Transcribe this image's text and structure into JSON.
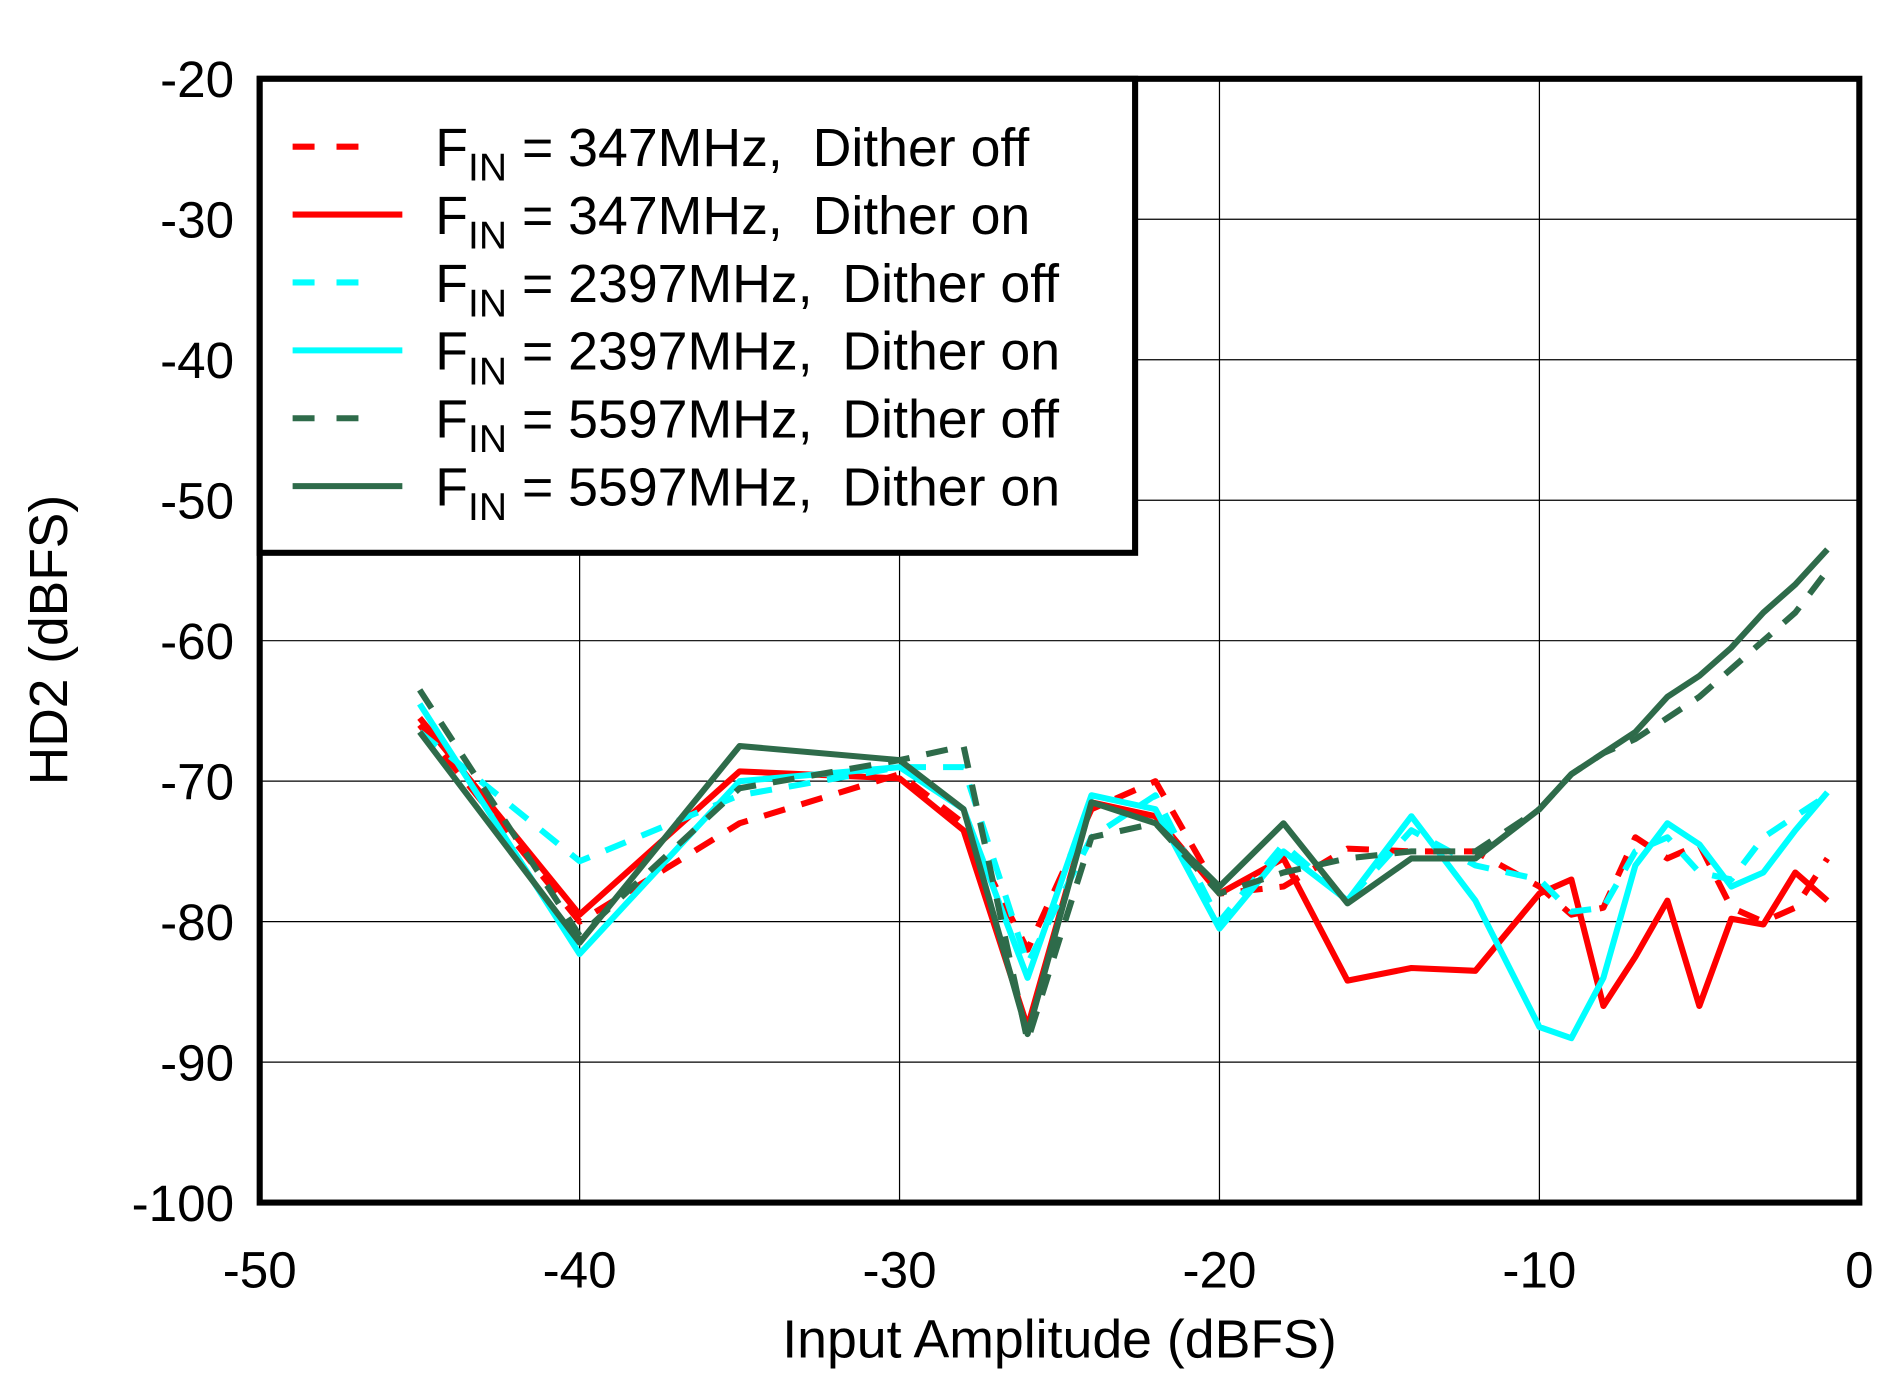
{
  "chart_data": {
    "type": "line",
    "title": "",
    "xlabel": "Input Amplitude  (dBFS)",
    "ylabel": "HD2  (dBFS)",
    "xlim": [
      -50,
      0
    ],
    "ylim": [
      -100,
      -20
    ],
    "xticks": [
      -50,
      -40,
      -30,
      -20,
      -10,
      0
    ],
    "yticks": [
      -20,
      -30,
      -40,
      -50,
      -60,
      -70,
      -80,
      -90,
      -100
    ],
    "grid": true,
    "legend_position": "top-left",
    "x": [
      -45,
      -40,
      -35,
      -30,
      -28,
      -26,
      -24,
      -22,
      -20,
      -18,
      -16,
      -14,
      -12,
      -10,
      -9,
      -8,
      -7,
      -6,
      -5,
      -4,
      -3,
      -2,
      -1
    ],
    "series": [
      {
        "name": {
          "prefix": "F",
          "sub": "IN",
          "rest": " = 347MHz,  Dither off"
        },
        "color": "#ff0000",
        "dashed": true,
        "values": [
          -66,
          -80,
          -73,
          -69.5,
          -73,
          -82,
          -72,
          -70,
          -78,
          -77.5,
          -74.8,
          -75,
          -75,
          -77.5,
          -79.5,
          -79,
          -74,
          -75.5,
          -74.5,
          -79,
          -80,
          -79,
          -75.5
        ]
      },
      {
        "name": {
          "prefix": "F",
          "sub": "IN",
          "rest": " = 347MHz,  Dither on"
        },
        "color": "#ff0000",
        "dashed": false,
        "values": [
          -65.5,
          -79.5,
          -69.3,
          -69.8,
          -73.5,
          -87.5,
          -71.5,
          -72.5,
          -78,
          -75.5,
          -84.2,
          -83.3,
          -83.5,
          -78,
          -77,
          -86,
          -82.5,
          -78.5,
          -86,
          -79.8,
          -80.2,
          -76.5,
          -78.5
        ]
      },
      {
        "name": {
          "prefix": "F",
          "sub": "IN",
          "rest": " = 2397MHz,  Dither off"
        },
        "color": "#00ffff",
        "dashed": true,
        "values": [
          -66.5,
          -75.7,
          -71,
          -69,
          -69,
          -83,
          -74,
          -71,
          -80,
          -74.5,
          -78.5,
          -73.5,
          -76,
          -77,
          -79.3,
          -79,
          -75,
          -74,
          -76.5,
          -77,
          -74,
          -72.5,
          -71
        ]
      },
      {
        "name": {
          "prefix": "F",
          "sub": "IN",
          "rest": " = 2397MHz,  Dither on"
        },
        "color": "#00ffff",
        "dashed": false,
        "values": [
          -64.5,
          -82.3,
          -70,
          -69,
          -72,
          -84,
          -71,
          -72,
          -80.5,
          -75,
          -78.5,
          -72.5,
          -78.5,
          -87.5,
          -88.3,
          -84,
          -76,
          -73,
          -74.5,
          -77.5,
          -76.5,
          -73.5,
          -70.8
        ]
      },
      {
        "name": {
          "prefix": "F",
          "sub": "IN",
          "rest": " = 5597MHz,  Dither off"
        },
        "color": "#2e6b4a",
        "dashed": true,
        "values": [
          -63.5,
          -81,
          -70.5,
          -68.5,
          -67.5,
          -88.5,
          -74,
          -73,
          -78,
          -76.5,
          -75.5,
          -75,
          -75,
          -72,
          -69.5,
          -68,
          -67,
          -65.5,
          -64,
          -62,
          -60,
          -58,
          -55
        ]
      },
      {
        "name": {
          "prefix": "F",
          "sub": "IN",
          "rest": " = 5597MHz,  Dither on"
        },
        "color": "#2e6b4a",
        "dashed": false,
        "values": [
          -66.5,
          -81.5,
          -67.5,
          -68.5,
          -72,
          -88,
          -71.5,
          -73,
          -77.5,
          -73,
          -78.7,
          -75.5,
          -75.5,
          -72,
          -69.5,
          -68,
          -66.5,
          -64,
          -62.5,
          -60.5,
          -58,
          -56,
          -53.5
        ]
      }
    ]
  }
}
